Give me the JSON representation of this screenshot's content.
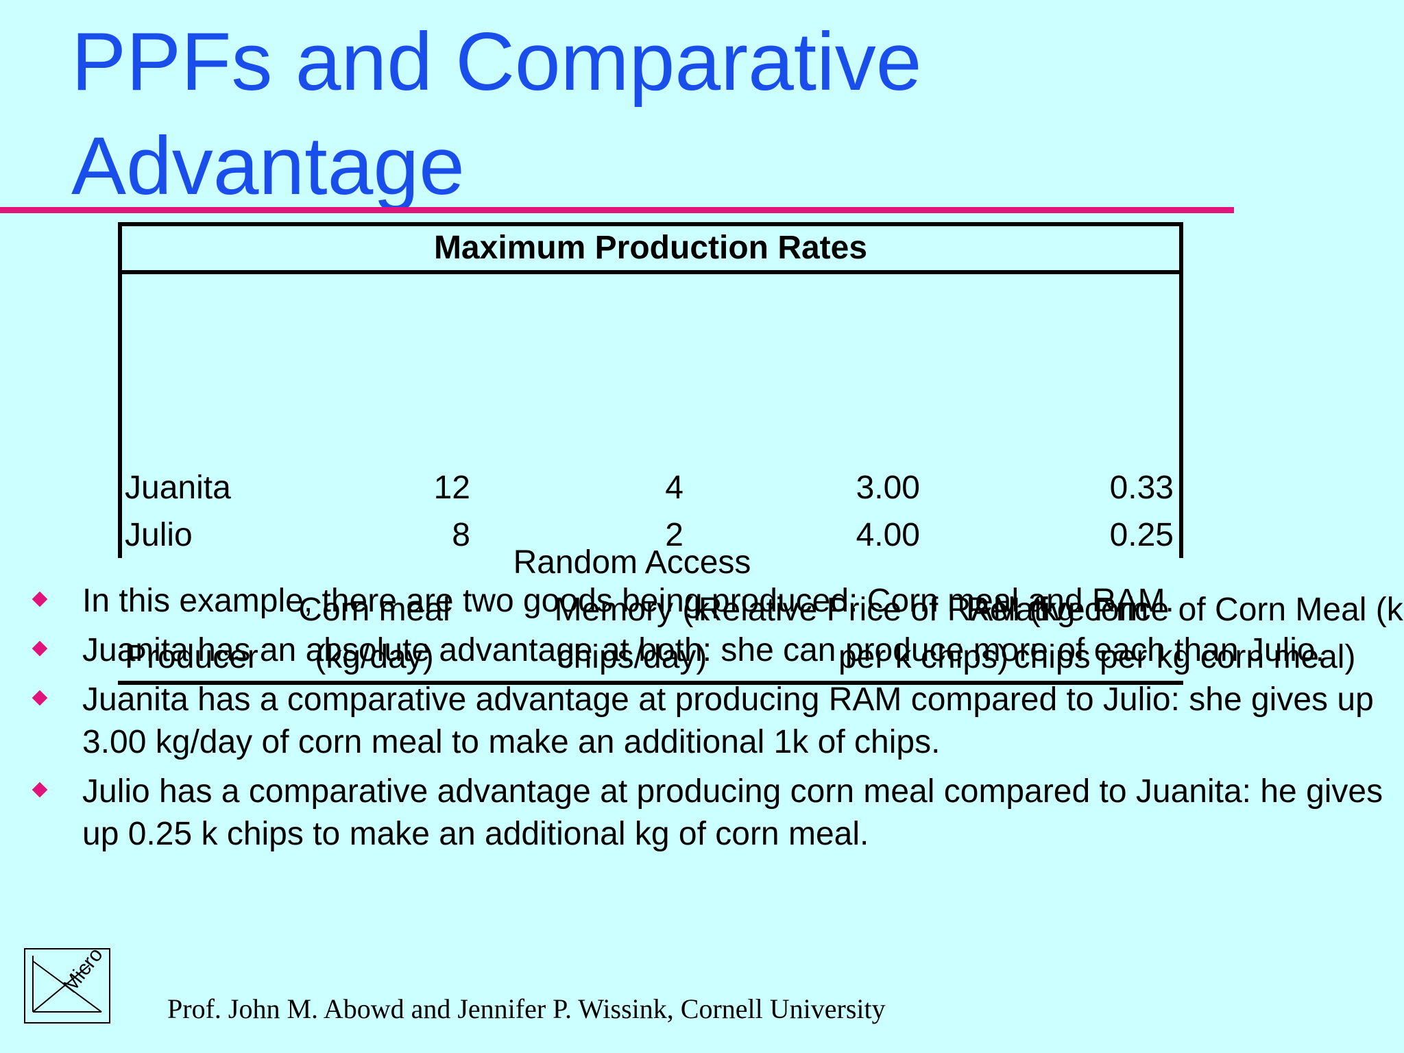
{
  "slide": {
    "title": "PPFs and Comparative Advantage",
    "accent_color": "#e0147a",
    "title_color": "#1a4eea",
    "background_color": "#ccffff"
  },
  "table": {
    "caption": "Maximum Production Rates",
    "headers": [
      "Producer",
      "Corn meal (kg/day)",
      "Random Access Memory (k chips/day)",
      "Relative Price of RAM (kg corn per k chips)",
      "Relative Price of Corn Meal (k chips per kg corn meal)"
    ],
    "rows": [
      [
        "Juanita",
        "12",
        "4",
        "3.00",
        "0.33"
      ],
      [
        "Julio",
        "8",
        "2",
        "4.00",
        "0.25"
      ]
    ]
  },
  "bullets": [
    "In this example, there are two goods being produced: Corn meal and RAM.",
    "Juanita has an absolute advantage at both: she can produce more of each than Julio.",
    "Juanita has a comparative advantage at producing RAM compared to Julio: she gives up 3.00 kg/day of corn meal to make an additional 1k of chips.",
    "Julio has a comparative advantage at producing corn meal compared to Juanita: he gives up 0.25 k chips to make an additional kg of corn meal."
  ],
  "logo": {
    "text": "Micro",
    "icon": "micro-logo-icon"
  },
  "footer": "Prof. John M. Abowd and Jennifer P. Wissink, Cornell University"
}
